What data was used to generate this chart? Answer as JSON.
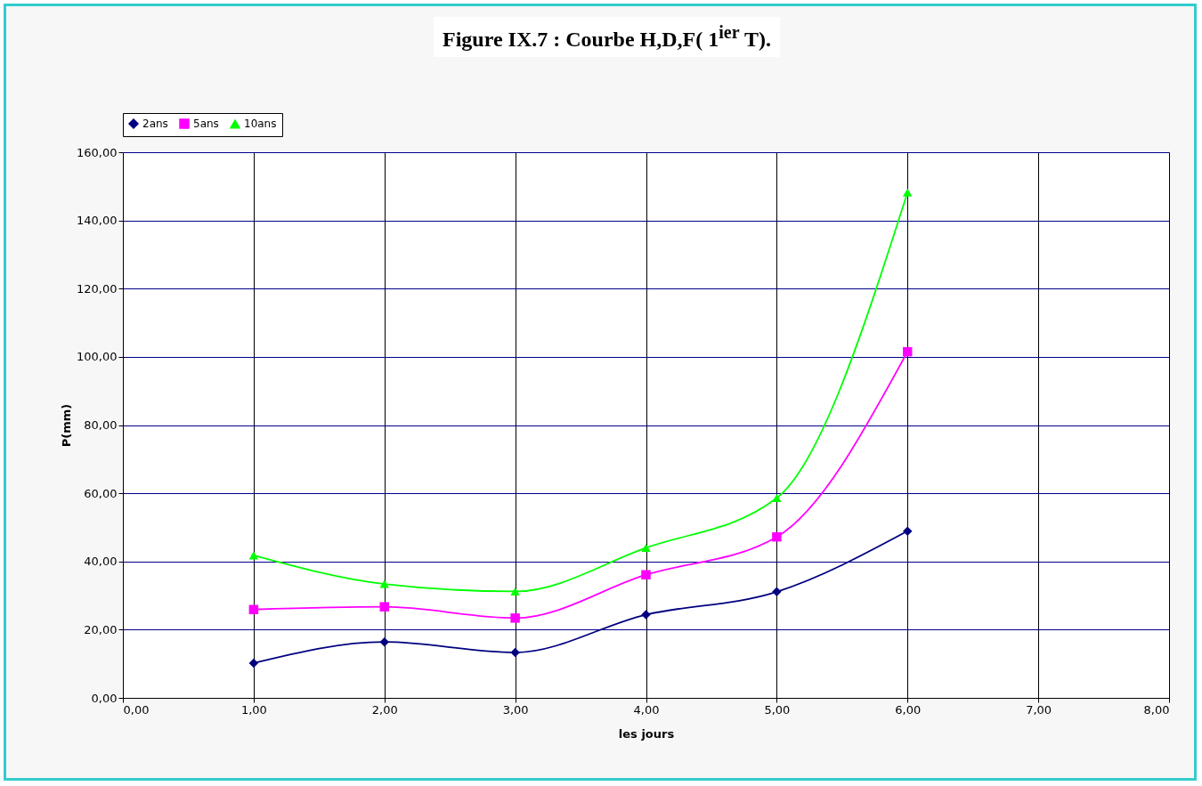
{
  "chart_data": {
    "type": "line",
    "title": "Figure IX.7 : Courbe H,D,F( 1$^{ier}$ T).",
    "xlabel": "les jours",
    "ylabel": "P(mm)",
    "x": [
      1,
      2,
      3,
      4,
      5,
      6
    ],
    "series": [
      {
        "name": "2ans",
        "color": "#000080",
        "marker": "diamond",
        "values": [
          10.2,
          16.4,
          13.3,
          24.4,
          31.1,
          48.9
        ]
      },
      {
        "name": "5ans",
        "color": "#ff00ff",
        "marker": "square",
        "values": [
          25.9,
          26.7,
          23.4,
          36.1,
          47.2,
          101.5
        ]
      },
      {
        "name": "10ans",
        "color": "#00ff00",
        "marker": "triangle",
        "values": [
          41.8,
          33.4,
          31.2,
          44.0,
          58.6,
          148.2
        ]
      }
    ],
    "xlim": [
      0,
      8
    ],
    "xticks": [
      {
        "value": 0,
        "label": "0,00"
      },
      {
        "value": 1,
        "label": "1,00"
      },
      {
        "value": 2,
        "label": "2,00"
      },
      {
        "value": 3,
        "label": "3,00"
      },
      {
        "value": 4,
        "label": "4,00"
      },
      {
        "value": 5,
        "label": "5,00"
      },
      {
        "value": 6,
        "label": "6,00"
      },
      {
        "value": 7,
        "label": "7,00"
      },
      {
        "value": 8,
        "label": "8,00"
      }
    ],
    "ylim": [
      0,
      160
    ],
    "yticks": [
      {
        "value": 0,
        "label": "0,00"
      },
      {
        "value": 20,
        "label": "20,00"
      },
      {
        "value": 40,
        "label": "40,00"
      },
      {
        "value": 60,
        "label": "60,00"
      },
      {
        "value": 80,
        "label": "80,00"
      },
      {
        "value": 100,
        "label": "100,00"
      },
      {
        "value": 120,
        "label": "120,00"
      },
      {
        "value": 140,
        "label": "140,00"
      },
      {
        "value": 160,
        "label": "160,00"
      }
    ],
    "grid": true,
    "legend": "top",
    "line_style": "solid"
  }
}
